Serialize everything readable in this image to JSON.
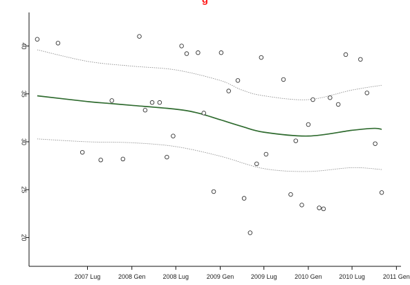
{
  "title_fragment": "g",
  "colors": {
    "title": "#ff1a1a",
    "smooth_line": "#2f6b2f",
    "bands": "#8a8a8a",
    "points": "#333333"
  },
  "chart_data": {
    "type": "scatter",
    "title": "g",
    "xlabel": "",
    "ylabel": "",
    "x_tick_labels": [
      "2007 Lug",
      "2008 Gen",
      "2008 Lug",
      "2009 Gen",
      "2009 Lug",
      "2010 Gen",
      "2010 Lug",
      "2011 Gen"
    ],
    "y_tick_labels": [
      "20",
      "25",
      "30",
      "35",
      "40"
    ],
    "x_ticks": [
      "2007-07-01",
      "2008-01-01",
      "2008-07-01",
      "2009-01-01",
      "2009-07-01",
      "2010-01-01",
      "2010-07-01",
      "2011-01-01"
    ],
    "y_ticks": [
      20,
      25,
      30,
      35,
      40
    ],
    "xlim": [
      "2006-11-01",
      "2011-01-20"
    ],
    "ylim": [
      17,
      43.5
    ],
    "grid": false,
    "legend": "none",
    "series": [
      {
        "type": "scatter",
        "points": [
          {
            "x": "2006-12-05",
            "y": 40.7
          },
          {
            "x": "2007-03-01",
            "y": 40.3
          },
          {
            "x": "2007-06-10",
            "y": 28.9
          },
          {
            "x": "2007-08-25",
            "y": 28.1
          },
          {
            "x": "2007-10-10",
            "y": 34.3
          },
          {
            "x": "2007-11-25",
            "y": 28.2
          },
          {
            "x": "2008-02-01",
            "y": 41.0
          },
          {
            "x": "2008-02-25",
            "y": 33.3
          },
          {
            "x": "2008-03-25",
            "y": 34.1
          },
          {
            "x": "2008-04-25",
            "y": 34.1
          },
          {
            "x": "2008-05-25",
            "y": 28.4
          },
          {
            "x": "2008-06-20",
            "y": 30.6
          },
          {
            "x": "2008-07-25",
            "y": 40.0
          },
          {
            "x": "2008-08-15",
            "y": 39.2
          },
          {
            "x": "2008-10-01",
            "y": 39.3
          },
          {
            "x": "2008-10-25",
            "y": 33.0
          },
          {
            "x": "2008-12-05",
            "y": 24.8
          },
          {
            "x": "2009-01-05",
            "y": 39.3
          },
          {
            "x": "2009-02-05",
            "y": 35.3
          },
          {
            "x": "2009-03-15",
            "y": 36.4
          },
          {
            "x": "2009-04-10",
            "y": 24.1
          },
          {
            "x": "2009-05-05",
            "y": 20.5
          },
          {
            "x": "2009-06-01",
            "y": 27.7
          },
          {
            "x": "2009-06-20",
            "y": 38.8
          },
          {
            "x": "2009-07-10",
            "y": 28.7
          },
          {
            "x": "2009-09-20",
            "y": 36.5
          },
          {
            "x": "2009-10-20",
            "y": 24.5
          },
          {
            "x": "2009-11-10",
            "y": 30.1
          },
          {
            "x": "2009-12-05",
            "y": 23.4
          },
          {
            "x": "2010-01-01",
            "y": 31.8
          },
          {
            "x": "2010-01-20",
            "y": 34.4
          },
          {
            "x": "2010-02-15",
            "y": 23.1
          },
          {
            "x": "2010-03-05",
            "y": 23.0
          },
          {
            "x": "2010-04-01",
            "y": 34.6
          },
          {
            "x": "2010-05-05",
            "y": 33.9
          },
          {
            "x": "2010-06-05",
            "y": 39.1
          },
          {
            "x": "2010-08-05",
            "y": 38.6
          },
          {
            "x": "2010-09-01",
            "y": 35.1
          },
          {
            "x": "2010-10-05",
            "y": 29.8
          },
          {
            "x": "2010-11-01",
            "y": 24.7
          }
        ]
      },
      {
        "type": "line",
        "style": "solid",
        "points": [
          {
            "x": "2006-12-05",
            "y": 34.8
          },
          {
            "x": "2007-07-01",
            "y": 34.2
          },
          {
            "x": "2007-10-01",
            "y": 34.0
          },
          {
            "x": "2008-01-01",
            "y": 33.8
          },
          {
            "x": "2008-07-01",
            "y": 33.4
          },
          {
            "x": "2008-10-01",
            "y": 33.0
          },
          {
            "x": "2009-01-01",
            "y": 32.3
          },
          {
            "x": "2009-04-01",
            "y": 31.6
          },
          {
            "x": "2009-07-01",
            "y": 31.0
          },
          {
            "x": "2010-01-01",
            "y": 30.6
          },
          {
            "x": "2010-07-01",
            "y": 31.2
          },
          {
            "x": "2010-10-01",
            "y": 31.4
          },
          {
            "x": "2010-11-01",
            "y": 31.3
          }
        ]
      },
      {
        "type": "line",
        "style": "dotted",
        "points": [
          {
            "x": "2006-12-05",
            "y": 39.6
          },
          {
            "x": "2007-07-01",
            "y": 38.4
          },
          {
            "x": "2008-01-01",
            "y": 37.9
          },
          {
            "x": "2008-07-01",
            "y": 37.5
          },
          {
            "x": "2009-01-01",
            "y": 36.4
          },
          {
            "x": "2009-04-01",
            "y": 35.4
          },
          {
            "x": "2009-07-01",
            "y": 34.8
          },
          {
            "x": "2010-01-01",
            "y": 34.4
          },
          {
            "x": "2010-07-01",
            "y": 35.4
          },
          {
            "x": "2010-11-01",
            "y": 35.9
          }
        ]
      },
      {
        "type": "line",
        "style": "dotted",
        "points": [
          {
            "x": "2006-12-05",
            "y": 30.3
          },
          {
            "x": "2007-07-01",
            "y": 30.0
          },
          {
            "x": "2008-01-01",
            "y": 29.9
          },
          {
            "x": "2008-07-01",
            "y": 29.5
          },
          {
            "x": "2009-01-01",
            "y": 28.5
          },
          {
            "x": "2009-07-01",
            "y": 27.2
          },
          {
            "x": "2010-01-01",
            "y": 26.9
          },
          {
            "x": "2010-07-01",
            "y": 27.3
          },
          {
            "x": "2010-11-01",
            "y": 27.1
          }
        ]
      }
    ]
  }
}
